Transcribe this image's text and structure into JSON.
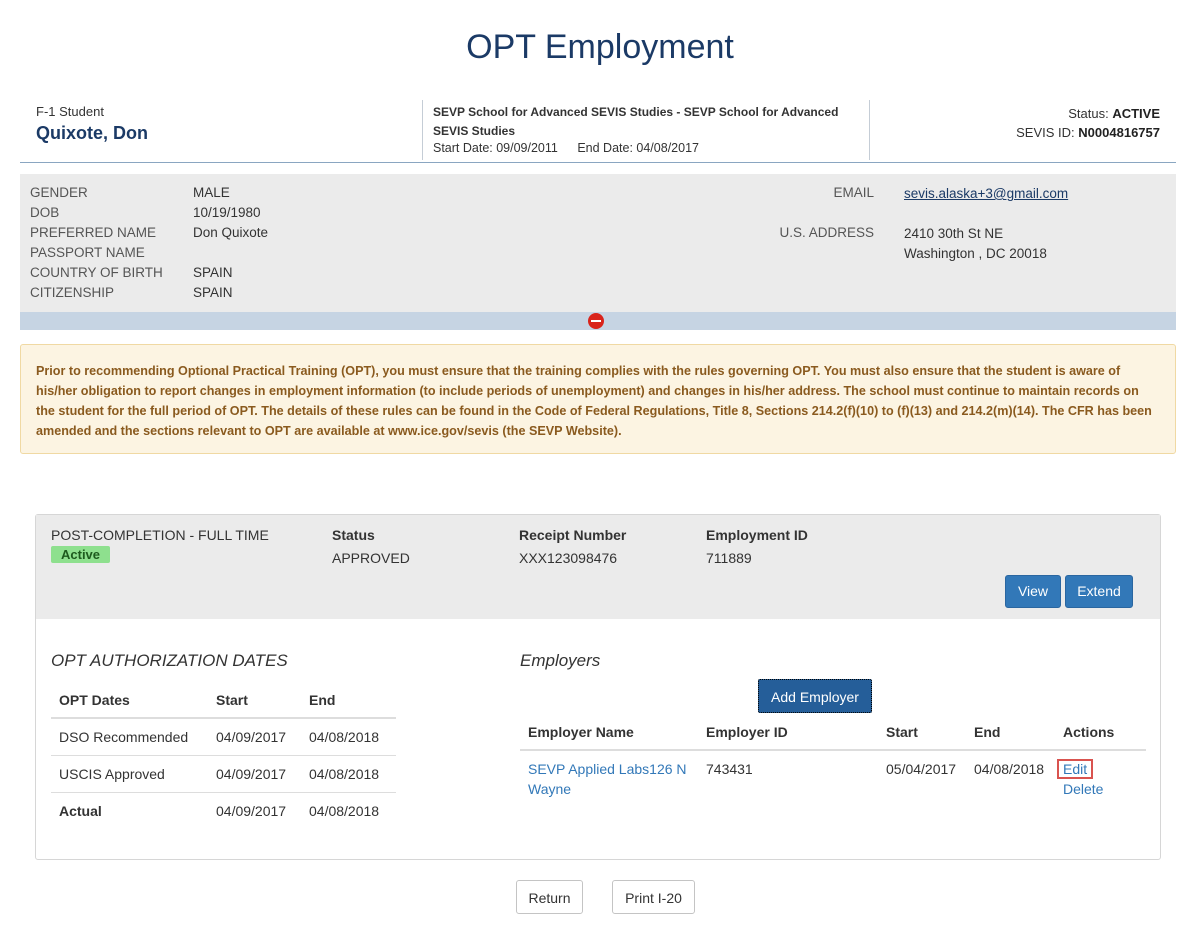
{
  "page": {
    "title": "OPT Employment"
  },
  "header": {
    "role": "F-1 Student",
    "name": "Quixote, Don",
    "school": "SEVP School for Advanced SEVIS Studies - SEVP School for Advanced SEVIS Studies",
    "start_date": "Start Date: 09/09/2011",
    "end_date": "End Date: 04/08/2017",
    "status_label": "Status:",
    "status_value": "ACTIVE",
    "sevis_label": "SEVIS ID:",
    "sevis_value": "N0004816757"
  },
  "bio": {
    "fields": [
      {
        "label": "GENDER",
        "value": "MALE"
      },
      {
        "label": "DOB",
        "value": "10/19/1980"
      },
      {
        "label": "PREFERRED NAME",
        "value": "Don Quixote"
      },
      {
        "label": "PASSPORT NAME",
        "value": ""
      },
      {
        "label": "COUNTRY OF BIRTH",
        "value": "SPAIN"
      },
      {
        "label": "CITIZENSHIP",
        "value": "SPAIN"
      }
    ],
    "email_label": "EMAIL",
    "email_value": "sevis.alaska+3@gmail.com",
    "address_label": "U.S. ADDRESS",
    "address_line1": "2410 30th St NE",
    "address_line2": "Washington , DC  20018"
  },
  "notice": {
    "text": "Prior to recommending Optional Practical Training (OPT), you must ensure that the training complies with the rules governing OPT. You must also ensure that the student is aware of his/her obligation to report changes in employment information (to include periods of unemployment) and changes in his/her address. The school must continue to maintain records on the student for the full period of OPT. The details of these rules can be found in the Code of Federal Regulations, Title 8, Sections 214.2(f)(10) to (f)(13) and 214.2(m)(14). The CFR has been amended and the sections relevant to OPT are available at www.ice.gov/sevis (the SEVP Website)."
  },
  "opt": {
    "type": "POST-COMPLETION - FULL TIME",
    "badge": "Active",
    "status_header": "Status",
    "status_value": "APPROVED",
    "receipt_header": "Receipt Number",
    "receipt_value": "XXX123098476",
    "employment_header": "Employment ID",
    "employment_value": "711889",
    "view_label": "View",
    "extend_label": "Extend"
  },
  "auth_dates": {
    "title": "OPT AUTHORIZATION DATES",
    "headers": [
      "OPT Dates",
      "Start",
      "End"
    ],
    "rows": [
      [
        "DSO Recommended",
        "04/09/2017",
        "04/08/2018"
      ],
      [
        "USCIS Approved",
        "04/09/2017",
        "04/08/2018"
      ],
      [
        "Actual",
        "04/09/2017",
        "04/08/2018"
      ]
    ]
  },
  "employers": {
    "title": "Employers",
    "add_label": "Add Employer",
    "headers": [
      "Employer Name",
      "Employer ID",
      "Start",
      "End",
      "Actions"
    ],
    "rows": [
      {
        "name": "SEVP Applied Labs126 N Wayne",
        "id": "743431",
        "start": "05/04/2017",
        "end": "04/08/2018",
        "edit": "Edit",
        "delete": "Delete"
      }
    ]
  },
  "footer": {
    "return_label": "Return",
    "print_label": "Print I-20"
  },
  "colors": {
    "primary": "#3278b8",
    "title": "#1b3a66",
    "badge": "#8ee08e",
    "notice_text": "#8a5a1e"
  }
}
